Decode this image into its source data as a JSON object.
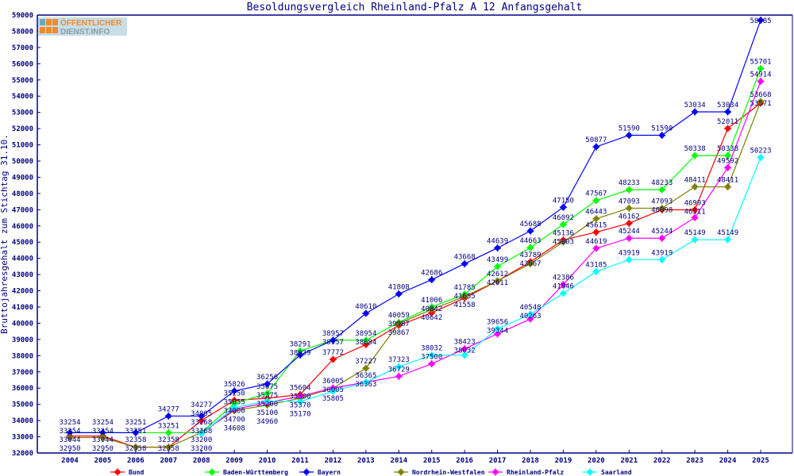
{
  "chart_data": {
    "type": "line",
    "title": "Besoldungsvergleich Rheinland-Pfalz A 12 Anfangsgehalt",
    "xlabel": "",
    "ylabel": "Bruttojahresgehalt zum Stichtag 31.10.",
    "x": [
      2004,
      2005,
      2006,
      2007,
      2008,
      2009,
      2010,
      2011,
      2012,
      2013,
      2014,
      2015,
      2016,
      2017,
      2018,
      2019,
      2020,
      2021,
      2022,
      2023,
      2024,
      2025
    ],
    "ylim": [
      32000,
      59000
    ],
    "yticks": [
      32000,
      33000,
      34000,
      35000,
      36000,
      37000,
      38000,
      39000,
      40000,
      41000,
      42000,
      43000,
      44000,
      45000,
      46000,
      47000,
      48000,
      49000,
      50000,
      51000,
      52000,
      53000,
      54000,
      55000,
      56000,
      57000,
      58000,
      59000
    ],
    "grid": false,
    "legend_position": "bottom",
    "series": [
      {
        "name": "Bund",
        "color": "#ff0000",
        "values": [
          33044,
          33044,
          32358,
          32358,
          34005,
          35250,
          35375,
          35604,
          37772,
          38684,
          39867,
          40642,
          41558,
          42611,
          43789,
          45136,
          45615,
          46162,
          46998,
          46993,
          52011,
          53571
        ]
      },
      {
        "name": "Baden-Württemberg",
        "color": "#00ff00",
        "values": [
          33254,
          33254,
          33251,
          33251,
          33268,
          35055,
          35675,
          38291,
          38957,
          38954,
          40059,
          41006,
          41785,
          43499,
          44663,
          46092,
          47567,
          48233,
          48233,
          50338,
          50338,
          55701
        ]
      },
      {
        "name": "Bayern",
        "color": "#0000ff",
        "values": [
          33254,
          33254,
          33251,
          34277,
          34277,
          35826,
          36256,
          38039,
          38957,
          40610,
          41808,
          42686,
          43668,
          44639,
          45688,
          47150,
          50877,
          51590,
          51590,
          53034,
          53034,
          58685
        ]
      },
      {
        "name": "Nordrhein-Westfalen",
        "color": "#808000",
        "values": [
          32950,
          32950,
          32358,
          32358,
          33268,
          34608,
          34960,
          35370,
          36005,
          37227,
          39987,
          40842,
          41655,
          42612,
          43667,
          45003,
          46443,
          47093,
          47093,
          48411,
          48411,
          53668
        ]
      },
      {
        "name": "Rheinland-Pfalz",
        "color": "#ff00ff",
        "values": [
          null,
          null,
          null,
          null,
          33200,
          34700,
          35100,
          35500,
          36005,
          36365,
          36729,
          37500,
          38423,
          39344,
          40263,
          42386,
          44619,
          45244,
          45244,
          46511,
          49592,
          54914
        ]
      },
      {
        "name": "Saarland",
        "color": "#00ffff",
        "values": [
          null,
          null,
          null,
          null,
          33200,
          34800,
          35200,
          35170,
          35805,
          36363,
          37323,
          38032,
          38032,
          39656,
          40548,
          41846,
          43185,
          43919,
          43919,
          45149,
          45149,
          50223
        ]
      }
    ]
  },
  "logo": {
    "line1": "ÖFFENTLICHER",
    "line2": "DIENST.INFO"
  }
}
